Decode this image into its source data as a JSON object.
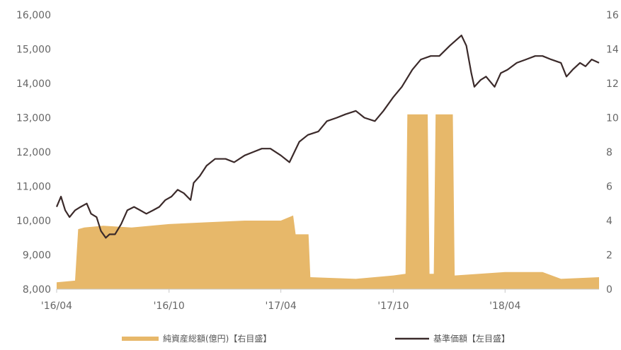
{
  "chart_data": {
    "type": "area+line",
    "x_ticks": [
      "'16/04",
      "'16/10",
      "'17/04",
      "'17/10",
      "'18/04"
    ],
    "x_tick_dates": [
      "2016-04",
      "2016-10",
      "2017-04",
      "2017-10",
      "2018-04"
    ],
    "x_range": [
      "2016-04",
      "2018-09"
    ],
    "left_axis": {
      "ylim": [
        8000,
        16000
      ],
      "ticks": [
        "8,000",
        "9,000",
        "10,000",
        "11,000",
        "12,000",
        "13,000",
        "14,000",
        "15,000",
        "16,000"
      ]
    },
    "right_axis": {
      "ylim": [
        0,
        16
      ],
      "ticks": [
        "0",
        "2",
        "4",
        "6",
        "8",
        "10",
        "12",
        "14",
        "16"
      ]
    },
    "grid": false,
    "legend_position": "bottom",
    "series": [
      {
        "name": "純資産総額(億円)【右目盛】",
        "type": "area",
        "axis": "right",
        "color": "#e7b86a",
        "points": [
          [
            "2016-04-01",
            0.4
          ],
          [
            "2016-05-01",
            0.5
          ],
          [
            "2016-05-06",
            3.5
          ],
          [
            "2016-05-16",
            3.6
          ],
          [
            "2016-06-16",
            3.7
          ],
          [
            "2016-08-01",
            3.6
          ],
          [
            "2016-10-01",
            3.8
          ],
          [
            "2016-12-01",
            3.9
          ],
          [
            "2017-02-01",
            4.0
          ],
          [
            "2017-04-01",
            4.0
          ],
          [
            "2017-04-21",
            4.3
          ],
          [
            "2017-04-25",
            3.2
          ],
          [
            "2017-05-16",
            3.2
          ],
          [
            "2017-05-19",
            0.7
          ],
          [
            "2017-08-01",
            0.6
          ],
          [
            "2017-10-01",
            0.8
          ],
          [
            "2017-10-21",
            0.9
          ],
          [
            "2017-10-24",
            10.2
          ],
          [
            "2017-11-26",
            10.2
          ],
          [
            "2017-11-29",
            0.9
          ],
          [
            "2017-12-06",
            0.9
          ],
          [
            "2017-12-09",
            10.2
          ],
          [
            "2018-01-06",
            10.2
          ],
          [
            "2018-01-09",
            0.8
          ],
          [
            "2018-04-01",
            1.0
          ],
          [
            "2018-06-01",
            1.0
          ],
          [
            "2018-07-01",
            0.6
          ],
          [
            "2018-09-01",
            0.7
          ]
        ]
      },
      {
        "name": "基準価額【左目盛】",
        "type": "line",
        "axis": "left",
        "color": "#3b2a2a",
        "points": [
          [
            "2016-04-01",
            10400
          ],
          [
            "2016-04-08",
            10700
          ],
          [
            "2016-04-15",
            10300
          ],
          [
            "2016-04-22",
            10100
          ],
          [
            "2016-05-01",
            10300
          ],
          [
            "2016-05-10",
            10400
          ],
          [
            "2016-05-20",
            10500
          ],
          [
            "2016-05-27",
            10200
          ],
          [
            "2016-06-05",
            10100
          ],
          [
            "2016-06-12",
            9700
          ],
          [
            "2016-06-20",
            9500
          ],
          [
            "2016-06-26",
            9600
          ],
          [
            "2016-07-05",
            9600
          ],
          [
            "2016-07-15",
            9900
          ],
          [
            "2016-07-25",
            10300
          ],
          [
            "2016-08-05",
            10400
          ],
          [
            "2016-08-15",
            10300
          ],
          [
            "2016-08-25",
            10200
          ],
          [
            "2016-09-05",
            10300
          ],
          [
            "2016-09-15",
            10400
          ],
          [
            "2016-09-25",
            10600
          ],
          [
            "2016-10-05",
            10700
          ],
          [
            "2016-10-15",
            10900
          ],
          [
            "2016-10-25",
            10800
          ],
          [
            "2016-11-05",
            10600
          ],
          [
            "2016-11-10",
            11100
          ],
          [
            "2016-11-20",
            11300
          ],
          [
            "2016-12-01",
            11600
          ],
          [
            "2016-12-15",
            11800
          ],
          [
            "2017-01-01",
            11800
          ],
          [
            "2017-01-15",
            11700
          ],
          [
            "2017-02-01",
            11900
          ],
          [
            "2017-02-15",
            12000
          ],
          [
            "2017-03-01",
            12100
          ],
          [
            "2017-03-15",
            12100
          ],
          [
            "2017-04-01",
            11900
          ],
          [
            "2017-04-15",
            11700
          ],
          [
            "2017-05-01",
            12300
          ],
          [
            "2017-05-15",
            12500
          ],
          [
            "2017-06-01",
            12600
          ],
          [
            "2017-06-15",
            12900
          ],
          [
            "2017-07-01",
            13000
          ],
          [
            "2017-07-15",
            13100
          ],
          [
            "2017-08-01",
            13200
          ],
          [
            "2017-08-15",
            13000
          ],
          [
            "2017-09-01",
            12900
          ],
          [
            "2017-09-15",
            13200
          ],
          [
            "2017-10-01",
            13600
          ],
          [
            "2017-10-15",
            13900
          ],
          [
            "2017-11-01",
            14400
          ],
          [
            "2017-11-15",
            14700
          ],
          [
            "2017-12-01",
            14800
          ],
          [
            "2017-12-15",
            14800
          ],
          [
            "2018-01-01",
            15100
          ],
          [
            "2018-01-20",
            15400
          ],
          [
            "2018-01-28",
            15100
          ],
          [
            "2018-02-05",
            14300
          ],
          [
            "2018-02-10",
            13900
          ],
          [
            "2018-02-20",
            14100
          ],
          [
            "2018-03-01",
            14200
          ],
          [
            "2018-03-15",
            13900
          ],
          [
            "2018-03-25",
            14300
          ],
          [
            "2018-04-05",
            14400
          ],
          [
            "2018-04-20",
            14600
          ],
          [
            "2018-05-05",
            14700
          ],
          [
            "2018-05-20",
            14800
          ],
          [
            "2018-06-01",
            14800
          ],
          [
            "2018-06-15",
            14700
          ],
          [
            "2018-07-01",
            14600
          ],
          [
            "2018-07-10",
            14200
          ],
          [
            "2018-07-20",
            14400
          ],
          [
            "2018-08-01",
            14600
          ],
          [
            "2018-08-10",
            14500
          ],
          [
            "2018-08-20",
            14700
          ],
          [
            "2018-09-01",
            14600
          ]
        ]
      }
    ],
    "legend": [
      {
        "label": "純資産総額(億円)【右目盛】",
        "symbol": "area",
        "color": "#e7b86a"
      },
      {
        "label": "基準価額【左目盛】",
        "symbol": "line",
        "color": "#3b2a2a"
      }
    ]
  }
}
